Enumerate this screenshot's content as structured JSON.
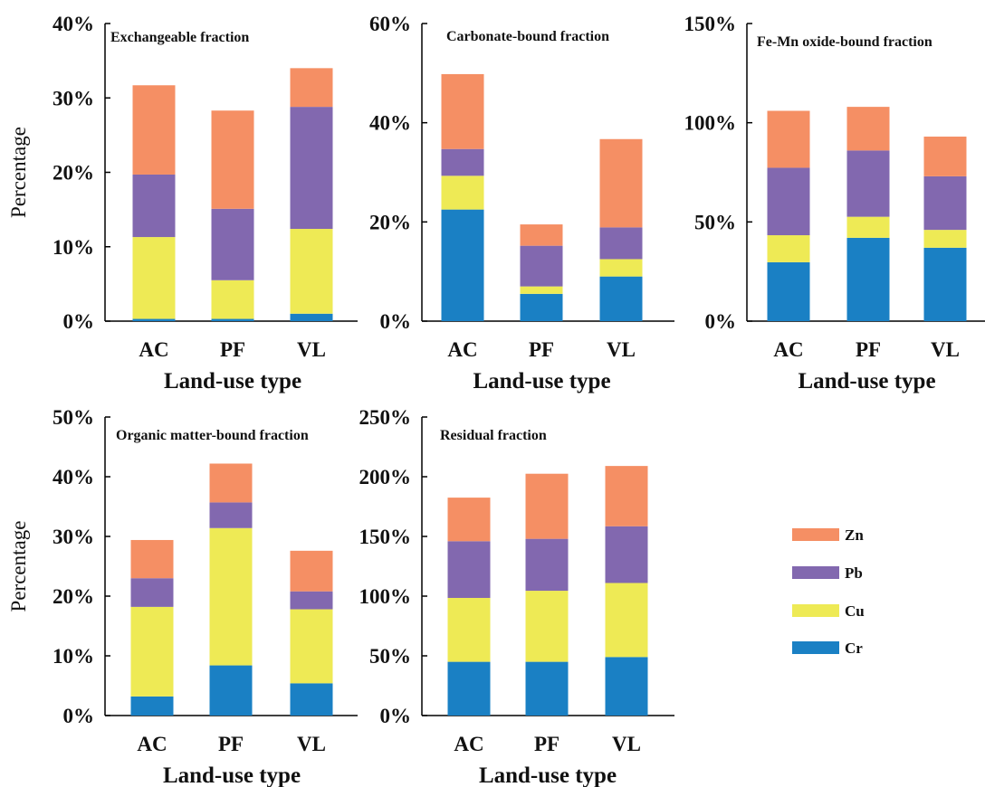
{
  "colors": {
    "Zn": "#F58F64",
    "Pb": "#8268AF",
    "Cu": "#EEEA55",
    "Cr": "#1A80C4"
  },
  "legend": {
    "items": [
      "Zn",
      "Pb",
      "Cu",
      "Cr"
    ]
  },
  "chart_data": [
    {
      "type": "bar",
      "stacked": true,
      "title": "Exchangeable fraction",
      "xlabel": "Land-use type",
      "ylabel": "Percentage",
      "categories": [
        "AC",
        "PF",
        "VL"
      ],
      "ylim": [
        0,
        40
      ],
      "yticks": [
        "0%",
        "10%",
        "20%",
        "30%",
        "40%"
      ],
      "series": [
        {
          "name": "Cr",
          "values": [
            0.3,
            0.3,
            1.0
          ]
        },
        {
          "name": "Cu",
          "values": [
            11.0,
            5.2,
            11.4
          ]
        },
        {
          "name": "Pb",
          "values": [
            8.4,
            9.6,
            16.4
          ]
        },
        {
          "name": "Zn",
          "values": [
            12.0,
            13.2,
            5.2
          ]
        }
      ]
    },
    {
      "type": "bar",
      "stacked": true,
      "title": "Carbonate-bound fraction",
      "xlabel": "Land-use type",
      "ylabel": "",
      "categories": [
        "AC",
        "PF",
        "VL"
      ],
      "ylim": [
        0,
        60
      ],
      "yticks": [
        "0%",
        "20%",
        "40%",
        "60%"
      ],
      "series": [
        {
          "name": "Cr",
          "values": [
            22.5,
            5.5,
            9.0
          ]
        },
        {
          "name": "Cu",
          "values": [
            6.8,
            1.5,
            3.5
          ]
        },
        {
          "name": "Pb",
          "values": [
            5.4,
            8.2,
            6.4
          ]
        },
        {
          "name": "Zn",
          "values": [
            15.1,
            4.3,
            17.8
          ]
        }
      ]
    },
    {
      "type": "bar",
      "stacked": true,
      "title": "Fe-Mn oxide-bound fraction",
      "xlabel": "Land-use type",
      "ylabel": "",
      "categories": [
        "AC",
        "PF",
        "VL"
      ],
      "ylim": [
        0,
        150
      ],
      "yticks": [
        "0%",
        "50%",
        "100%",
        "150%"
      ],
      "series": [
        {
          "name": "Cr",
          "values": [
            29.7,
            42.0,
            37.0
          ]
        },
        {
          "name": "Cu",
          "values": [
            13.6,
            10.6,
            9.0
          ]
        },
        {
          "name": "Pb",
          "values": [
            34.0,
            33.4,
            27.0
          ]
        },
        {
          "name": "Zn",
          "values": [
            28.7,
            22.0,
            20.0
          ]
        }
      ]
    },
    {
      "type": "bar",
      "stacked": true,
      "title": "Organic matter-bound fraction",
      "xlabel": "Land-use type",
      "ylabel": "Percentage",
      "categories": [
        "AC",
        "PF",
        "VL"
      ],
      "ylim": [
        0,
        50
      ],
      "yticks": [
        "0%",
        "10%",
        "20%",
        "30%",
        "40%",
        "50%"
      ],
      "series": [
        {
          "name": "Cr",
          "values": [
            3.2,
            8.4,
            5.4
          ]
        },
        {
          "name": "Cu",
          "values": [
            15.0,
            23.0,
            12.4
          ]
        },
        {
          "name": "Pb",
          "values": [
            4.8,
            4.3,
            3.0
          ]
        },
        {
          "name": "Zn",
          "values": [
            6.4,
            6.5,
            6.8
          ]
        }
      ]
    },
    {
      "type": "bar",
      "stacked": true,
      "title": "Residual fraction",
      "xlabel": "Land-use type",
      "ylabel": "",
      "categories": [
        "AC",
        "PF",
        "VL"
      ],
      "ylim": [
        0,
        250
      ],
      "yticks": [
        "0%",
        "50%",
        "100%",
        "150%",
        "200%",
        "250%"
      ],
      "series": [
        {
          "name": "Cr",
          "values": [
            45.0,
            45.0,
            49.0
          ]
        },
        {
          "name": "Cu",
          "values": [
            53.5,
            59.5,
            62.0
          ]
        },
        {
          "name": "Pb",
          "values": [
            47.5,
            43.5,
            47.5
          ]
        },
        {
          "name": "Zn",
          "values": [
            36.5,
            54.5,
            50.5
          ]
        }
      ]
    }
  ]
}
